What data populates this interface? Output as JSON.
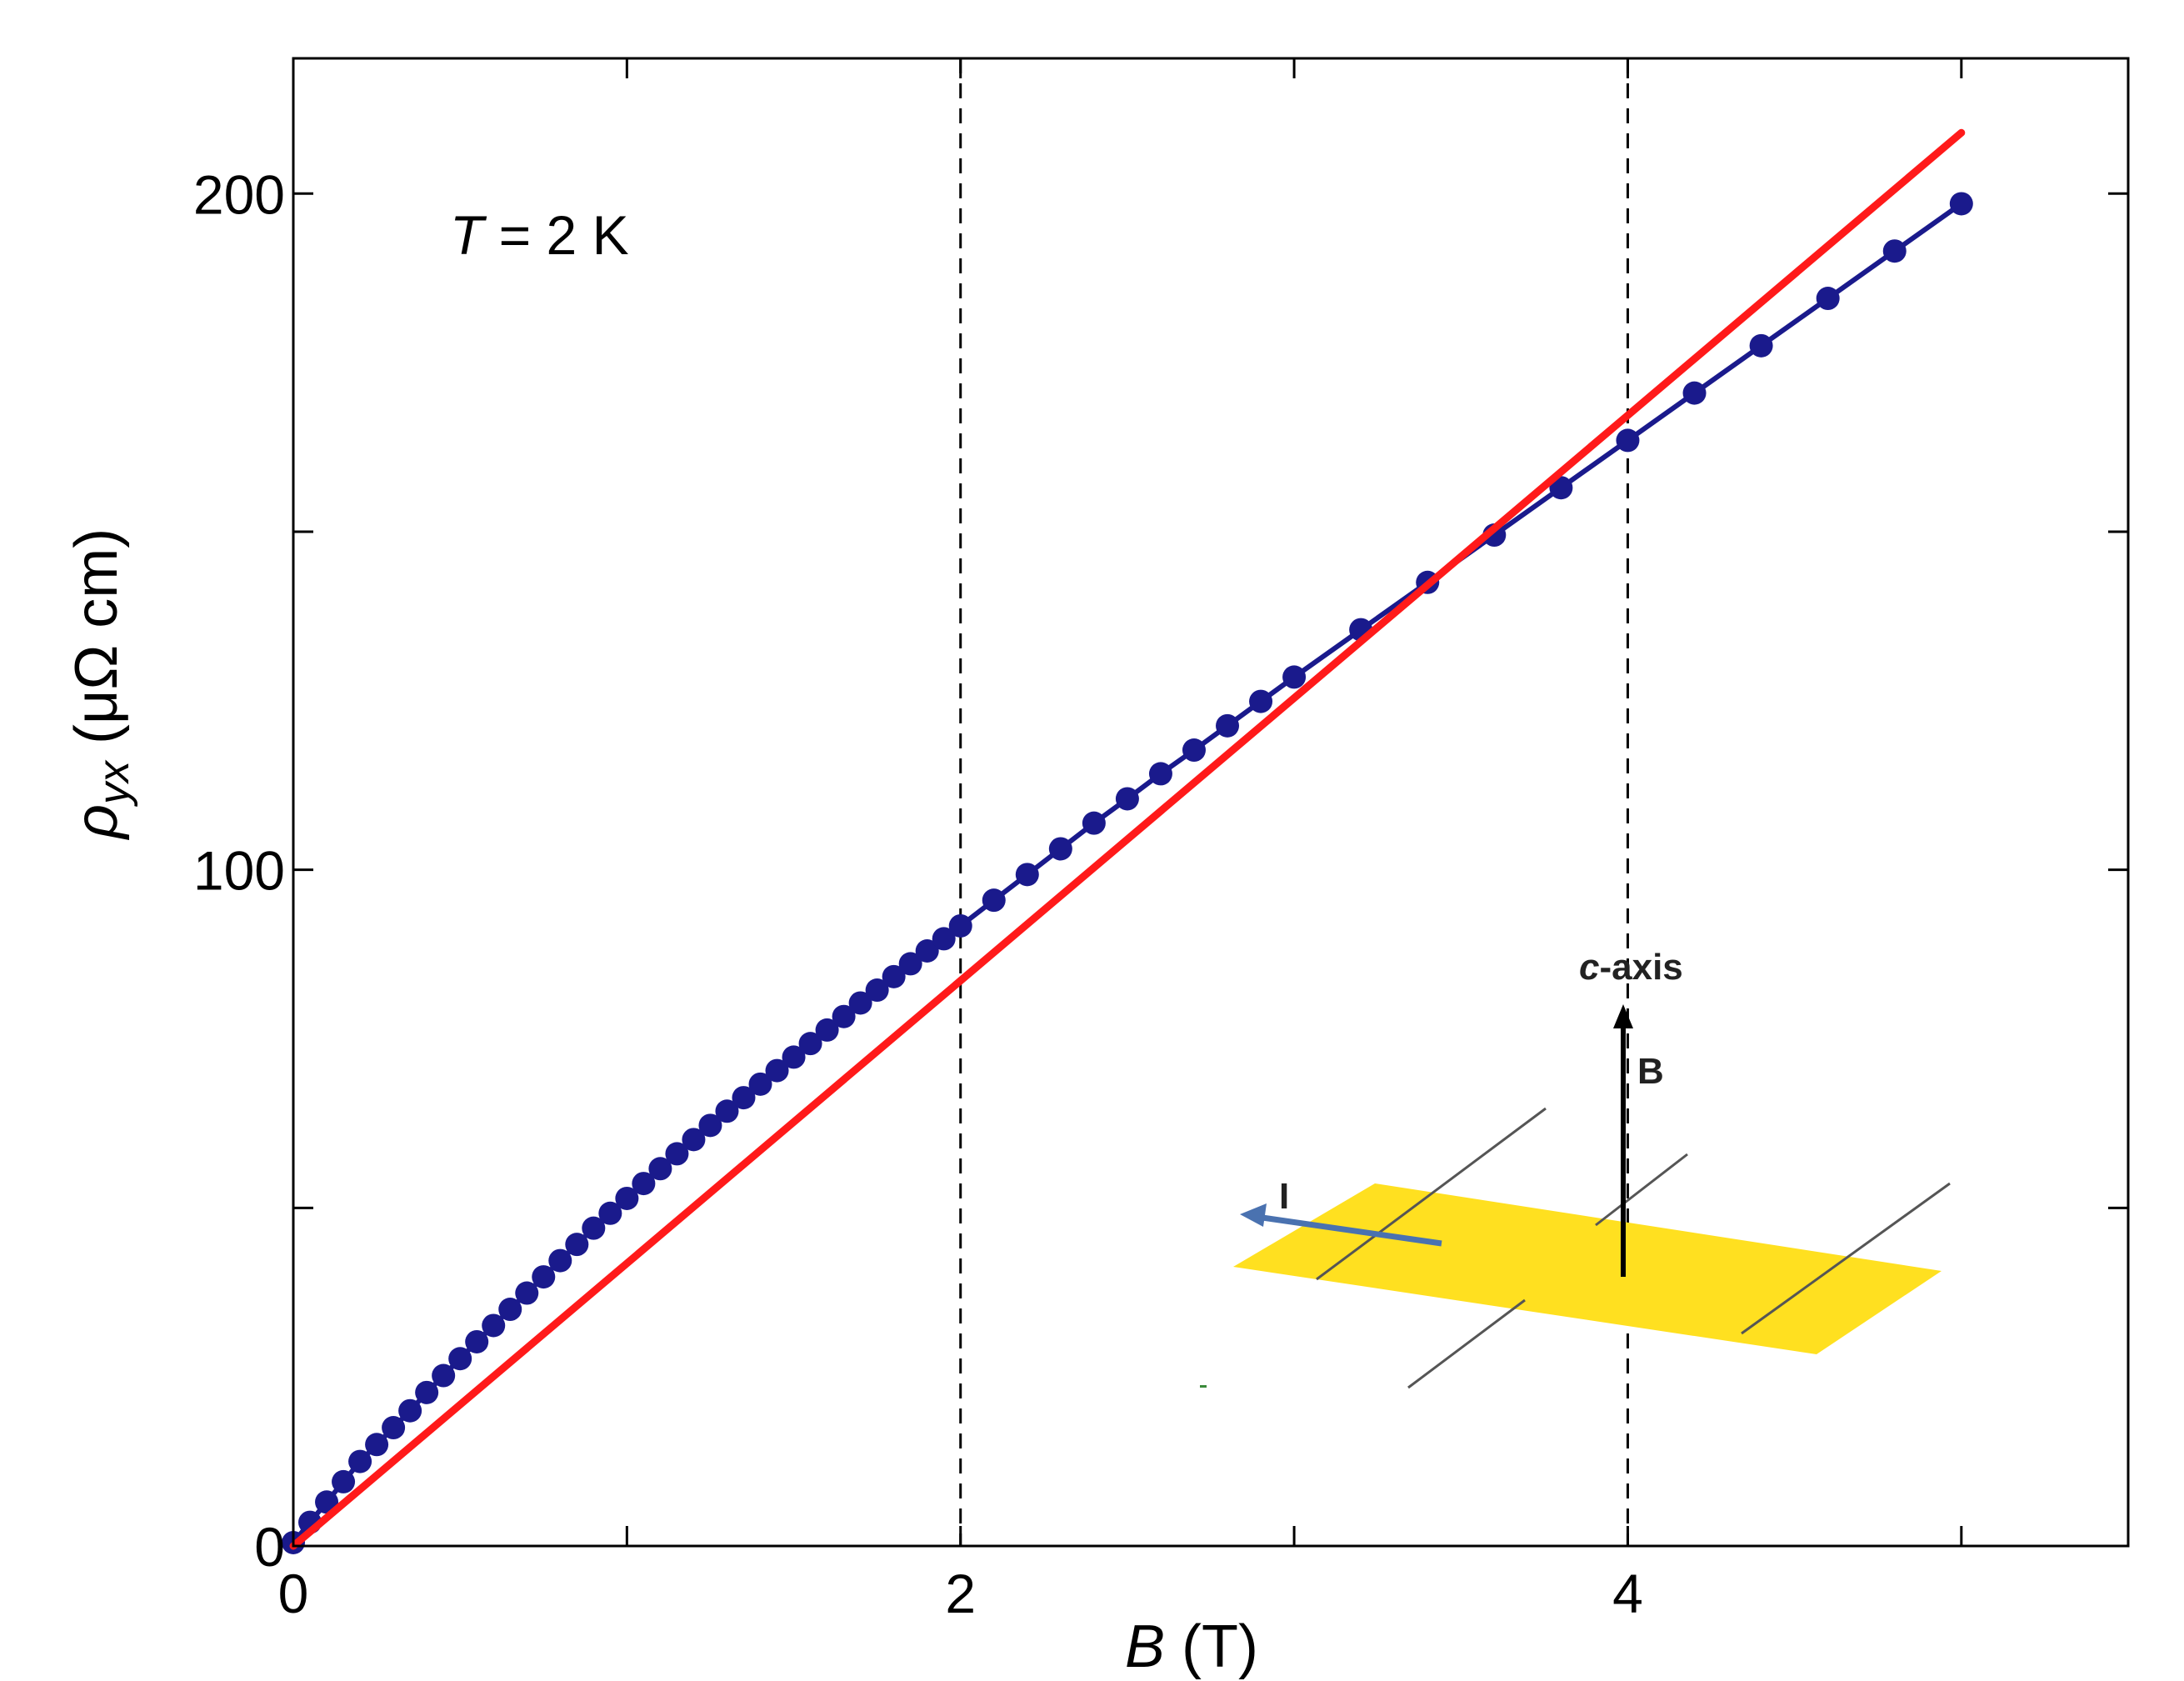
{
  "chart_data": {
    "type": "scatter",
    "xlim": [
      0,
      5.5
    ],
    "ylim": [
      0,
      220
    ],
    "x_major_ticks": [
      0,
      2,
      4
    ],
    "x_minor_ticks": [
      1,
      3,
      5
    ],
    "y_major_ticks": [
      0,
      100,
      200
    ],
    "y_minor_ticks": [
      50,
      150
    ],
    "x_tick_labels": [
      "0",
      "2",
      "4"
    ],
    "y_tick_labels": [
      "0",
      "100",
      "200"
    ],
    "vertical_dashed_lines_at": [
      2,
      4
    ],
    "xlabel": {
      "symbol": "B",
      "unit": " (T)"
    },
    "ylabel": {
      "symbol": "ρ",
      "subscript": "yx",
      "unit": " (μΩ cm)"
    },
    "annotation": {
      "symbol": "T",
      "text": " = 2 K"
    },
    "series": [
      {
        "marker": "circle",
        "color": "#1a1a8c",
        "x": [
          0.0,
          0.05,
          0.1,
          0.15,
          0.2,
          0.25,
          0.3,
          0.35,
          0.4,
          0.45,
          0.5,
          0.55,
          0.6,
          0.65,
          0.7,
          0.75,
          0.8,
          0.85,
          0.9,
          0.95,
          1.0,
          1.05,
          1.1,
          1.15,
          1.2,
          1.25,
          1.3,
          1.35,
          1.4,
          1.45,
          1.5,
          1.55,
          1.6,
          1.65,
          1.7,
          1.75,
          1.8,
          1.85,
          1.9,
          1.95,
          2.0,
          2.1,
          2.2,
          2.3,
          2.4,
          2.5,
          2.6,
          2.7,
          2.8,
          2.9,
          3.0,
          3.2,
          3.4,
          3.6,
          3.8,
          4.0,
          4.2,
          4.4,
          4.6,
          4.8,
          5.0
        ],
        "y": [
          0.5,
          3.5,
          6.5,
          9.5,
          12.5,
          15.0,
          17.5,
          20.0,
          22.7,
          25.2,
          27.7,
          30.2,
          32.6,
          35.0,
          37.4,
          39.8,
          42.2,
          44.6,
          47.0,
          49.2,
          51.4,
          53.6,
          55.8,
          58.0,
          60.1,
          62.2,
          64.3,
          66.3,
          68.3,
          70.3,
          72.3,
          74.3,
          76.3,
          78.3,
          80.3,
          82.2,
          84.2,
          86.1,
          88.0,
          89.8,
          91.7,
          95.5,
          99.3,
          103.1,
          106.9,
          110.5,
          114.2,
          117.7,
          121.3,
          124.9,
          128.5,
          135.5,
          142.5,
          149.5,
          156.5,
          163.5,
          170.5,
          177.5,
          184.5,
          191.5,
          198.5
        ]
      },
      {
        "type": "line",
        "color": "#ff1a1a",
        "x": [
          0,
          5.0
        ],
        "y": [
          0,
          209
        ]
      }
    ]
  },
  "inset": {
    "axis_label_italic": "c",
    "axis_label_rest": "-axis",
    "field_label": "B",
    "current_label": "I",
    "plate_color": "#ffe020",
    "current_arrow_color": "#4a72b0"
  }
}
